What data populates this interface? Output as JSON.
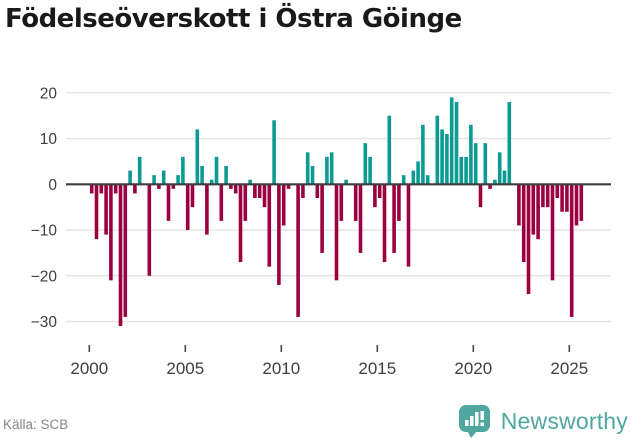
{
  "header": {
    "title": "Födelseöverskott i Östra Göinge"
  },
  "chart_data": {
    "type": "bar",
    "title": "Födelseöverskott i Östra Göinge",
    "xlabel": "",
    "ylabel": "",
    "ylim": [
      -33,
      22
    ],
    "grid": true,
    "legend": "none",
    "period": "quarterly",
    "colors": {
      "positive": "#0D9A93",
      "negative": "#9B0140",
      "zero_line": "#3D3D3D",
      "grid_line": "#E4E4E4"
    },
    "ytick_values": [
      20,
      10,
      0,
      -10,
      -20,
      -30
    ],
    "ytick_labels": [
      "20",
      "10",
      "0",
      "−10",
      "−20",
      "−30"
    ],
    "xtick_years": [
      2000,
      2005,
      2010,
      2015,
      2020,
      2025
    ],
    "xtick_labels": [
      "2000",
      "2005",
      "2010",
      "2015",
      "2020",
      "2025"
    ],
    "x": [
      "2000 Q1",
      "2000 Q2",
      "2000 Q3",
      "2000 Q4",
      "2001 Q1",
      "2001 Q2",
      "2001 Q3",
      "2001 Q4",
      "2002 Q1",
      "2002 Q2",
      "2002 Q3",
      "2002 Q4",
      "2003 Q1",
      "2003 Q2",
      "2003 Q3",
      "2003 Q4",
      "2004 Q1",
      "2004 Q2",
      "2004 Q3",
      "2004 Q4",
      "2005 Q1",
      "2005 Q2",
      "2005 Q3",
      "2005 Q4",
      "2006 Q1",
      "2006 Q2",
      "2006 Q3",
      "2006 Q4",
      "2007 Q1",
      "2007 Q2",
      "2007 Q3",
      "2007 Q4",
      "2008 Q1",
      "2008 Q2",
      "2008 Q3",
      "2008 Q4",
      "2009 Q1",
      "2009 Q2",
      "2009 Q3",
      "2009 Q4",
      "2010 Q1",
      "2010 Q2",
      "2010 Q3",
      "2010 Q4",
      "2011 Q1",
      "2011 Q2",
      "2011 Q3",
      "2011 Q4",
      "2012 Q1",
      "2012 Q2",
      "2012 Q3",
      "2012 Q4",
      "2013 Q1",
      "2013 Q2",
      "2013 Q3",
      "2013 Q4",
      "2014 Q1",
      "2014 Q2",
      "2014 Q3",
      "2014 Q4",
      "2015 Q1",
      "2015 Q2",
      "2015 Q3",
      "2015 Q4",
      "2016 Q1",
      "2016 Q2",
      "2016 Q3",
      "2016 Q4",
      "2017 Q1",
      "2017 Q2",
      "2017 Q3",
      "2017 Q4",
      "2018 Q1",
      "2018 Q2",
      "2018 Q3",
      "2018 Q4",
      "2019 Q1",
      "2019 Q2",
      "2019 Q3",
      "2019 Q4",
      "2020 Q1",
      "2020 Q2",
      "2020 Q3",
      "2020 Q4",
      "2021 Q1",
      "2021 Q2",
      "2021 Q3",
      "2021 Q4",
      "2022 Q1",
      "2022 Q2",
      "2022 Q3",
      "2022 Q4",
      "2023 Q1",
      "2023 Q2",
      "2023 Q3",
      "2023 Q4",
      "2024 Q1",
      "2024 Q2",
      "2024 Q3",
      "2024 Q4",
      "2025 Q1",
      "2025 Q2",
      "2025 Q3"
    ],
    "values": [
      -2,
      -12,
      -2,
      -11,
      -21,
      -2,
      -31,
      -29,
      3,
      -2,
      6,
      0,
      -20,
      2,
      -1,
      3,
      -8,
      -1,
      2,
      6,
      -10,
      -5,
      12,
      4,
      -11,
      1,
      6,
      -8,
      4,
      -1,
      -2,
      -17,
      -8,
      1,
      -3,
      -3,
      -5,
      -18,
      14,
      -22,
      -9,
      -1,
      0,
      -29,
      -3,
      7,
      4,
      -3,
      -15,
      6,
      7,
      -21,
      -8,
      1,
      0,
      -8,
      -15,
      9,
      6,
      -5,
      -3,
      -17,
      15,
      -15,
      -8,
      2,
      -18,
      3,
      5,
      13,
      2,
      0,
      15,
      12,
      11,
      19,
      18,
      6,
      6,
      13,
      9,
      -5,
      9,
      -1,
      1,
      7,
      3,
      18,
      0,
      -9,
      -17,
      -24,
      -11,
      -12,
      -5,
      -5,
      -21,
      -3,
      -6,
      -6,
      -29,
      -9,
      -8
    ]
  },
  "footer": {
    "source_label": "Källa: SCB",
    "brand_name": "Newsworthy",
    "brand_color": "#4FA7A0"
  }
}
